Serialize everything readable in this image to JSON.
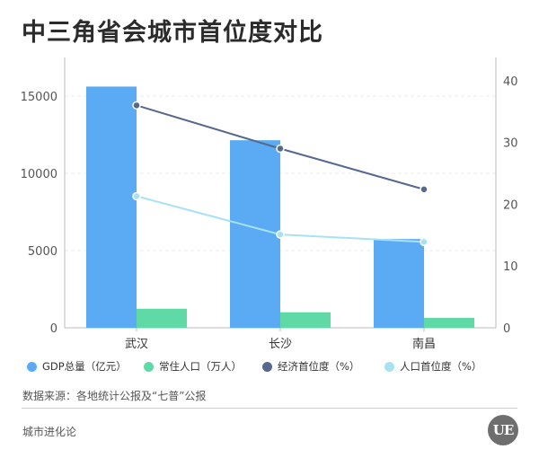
{
  "header": {
    "title": "中三角省会城市首位度对比"
  },
  "chart_data": {
    "type": "bar+line",
    "categories": [
      "武汉",
      "长沙",
      "南昌"
    ],
    "left_axis": {
      "range": [
        0,
        17500
      ],
      "ticks": [
        0,
        5000,
        10000,
        15000
      ],
      "tick_labels": [
        "0",
        "5000",
        "10000",
        "15000"
      ]
    },
    "right_axis": {
      "range": [
        0,
        43.75
      ],
      "ticks": [
        0,
        10,
        20,
        30,
        40
      ],
      "tick_labels": [
        "0",
        "10",
        "20",
        "30",
        "40"
      ]
    },
    "bar_series": [
      {
        "name": "GDP总量（亿元）",
        "color": "#5aabf3",
        "axis": "left",
        "values": [
          15616,
          12142,
          5746
        ]
      },
      {
        "name": "常住人口（万人）",
        "color": "#5fd9a6",
        "axis": "left",
        "values": [
          1233,
          1005,
          643
        ]
      }
    ],
    "line_series": [
      {
        "name": "经济首位度（%）",
        "color": "#56688e",
        "axis": "right",
        "values": [
          36,
          29,
          22.4
        ]
      },
      {
        "name": "人口首位度（%）",
        "color": "#a7e1f4",
        "axis": "right",
        "values": [
          21.3,
          15.1,
          13.9
        ]
      }
    ],
    "grid": true,
    "legend_position": "bottom"
  },
  "source_note": "数据来源：各地统计公报及“七普”公报",
  "footer": {
    "brand": "城市进化论",
    "logo_text": "UE"
  }
}
